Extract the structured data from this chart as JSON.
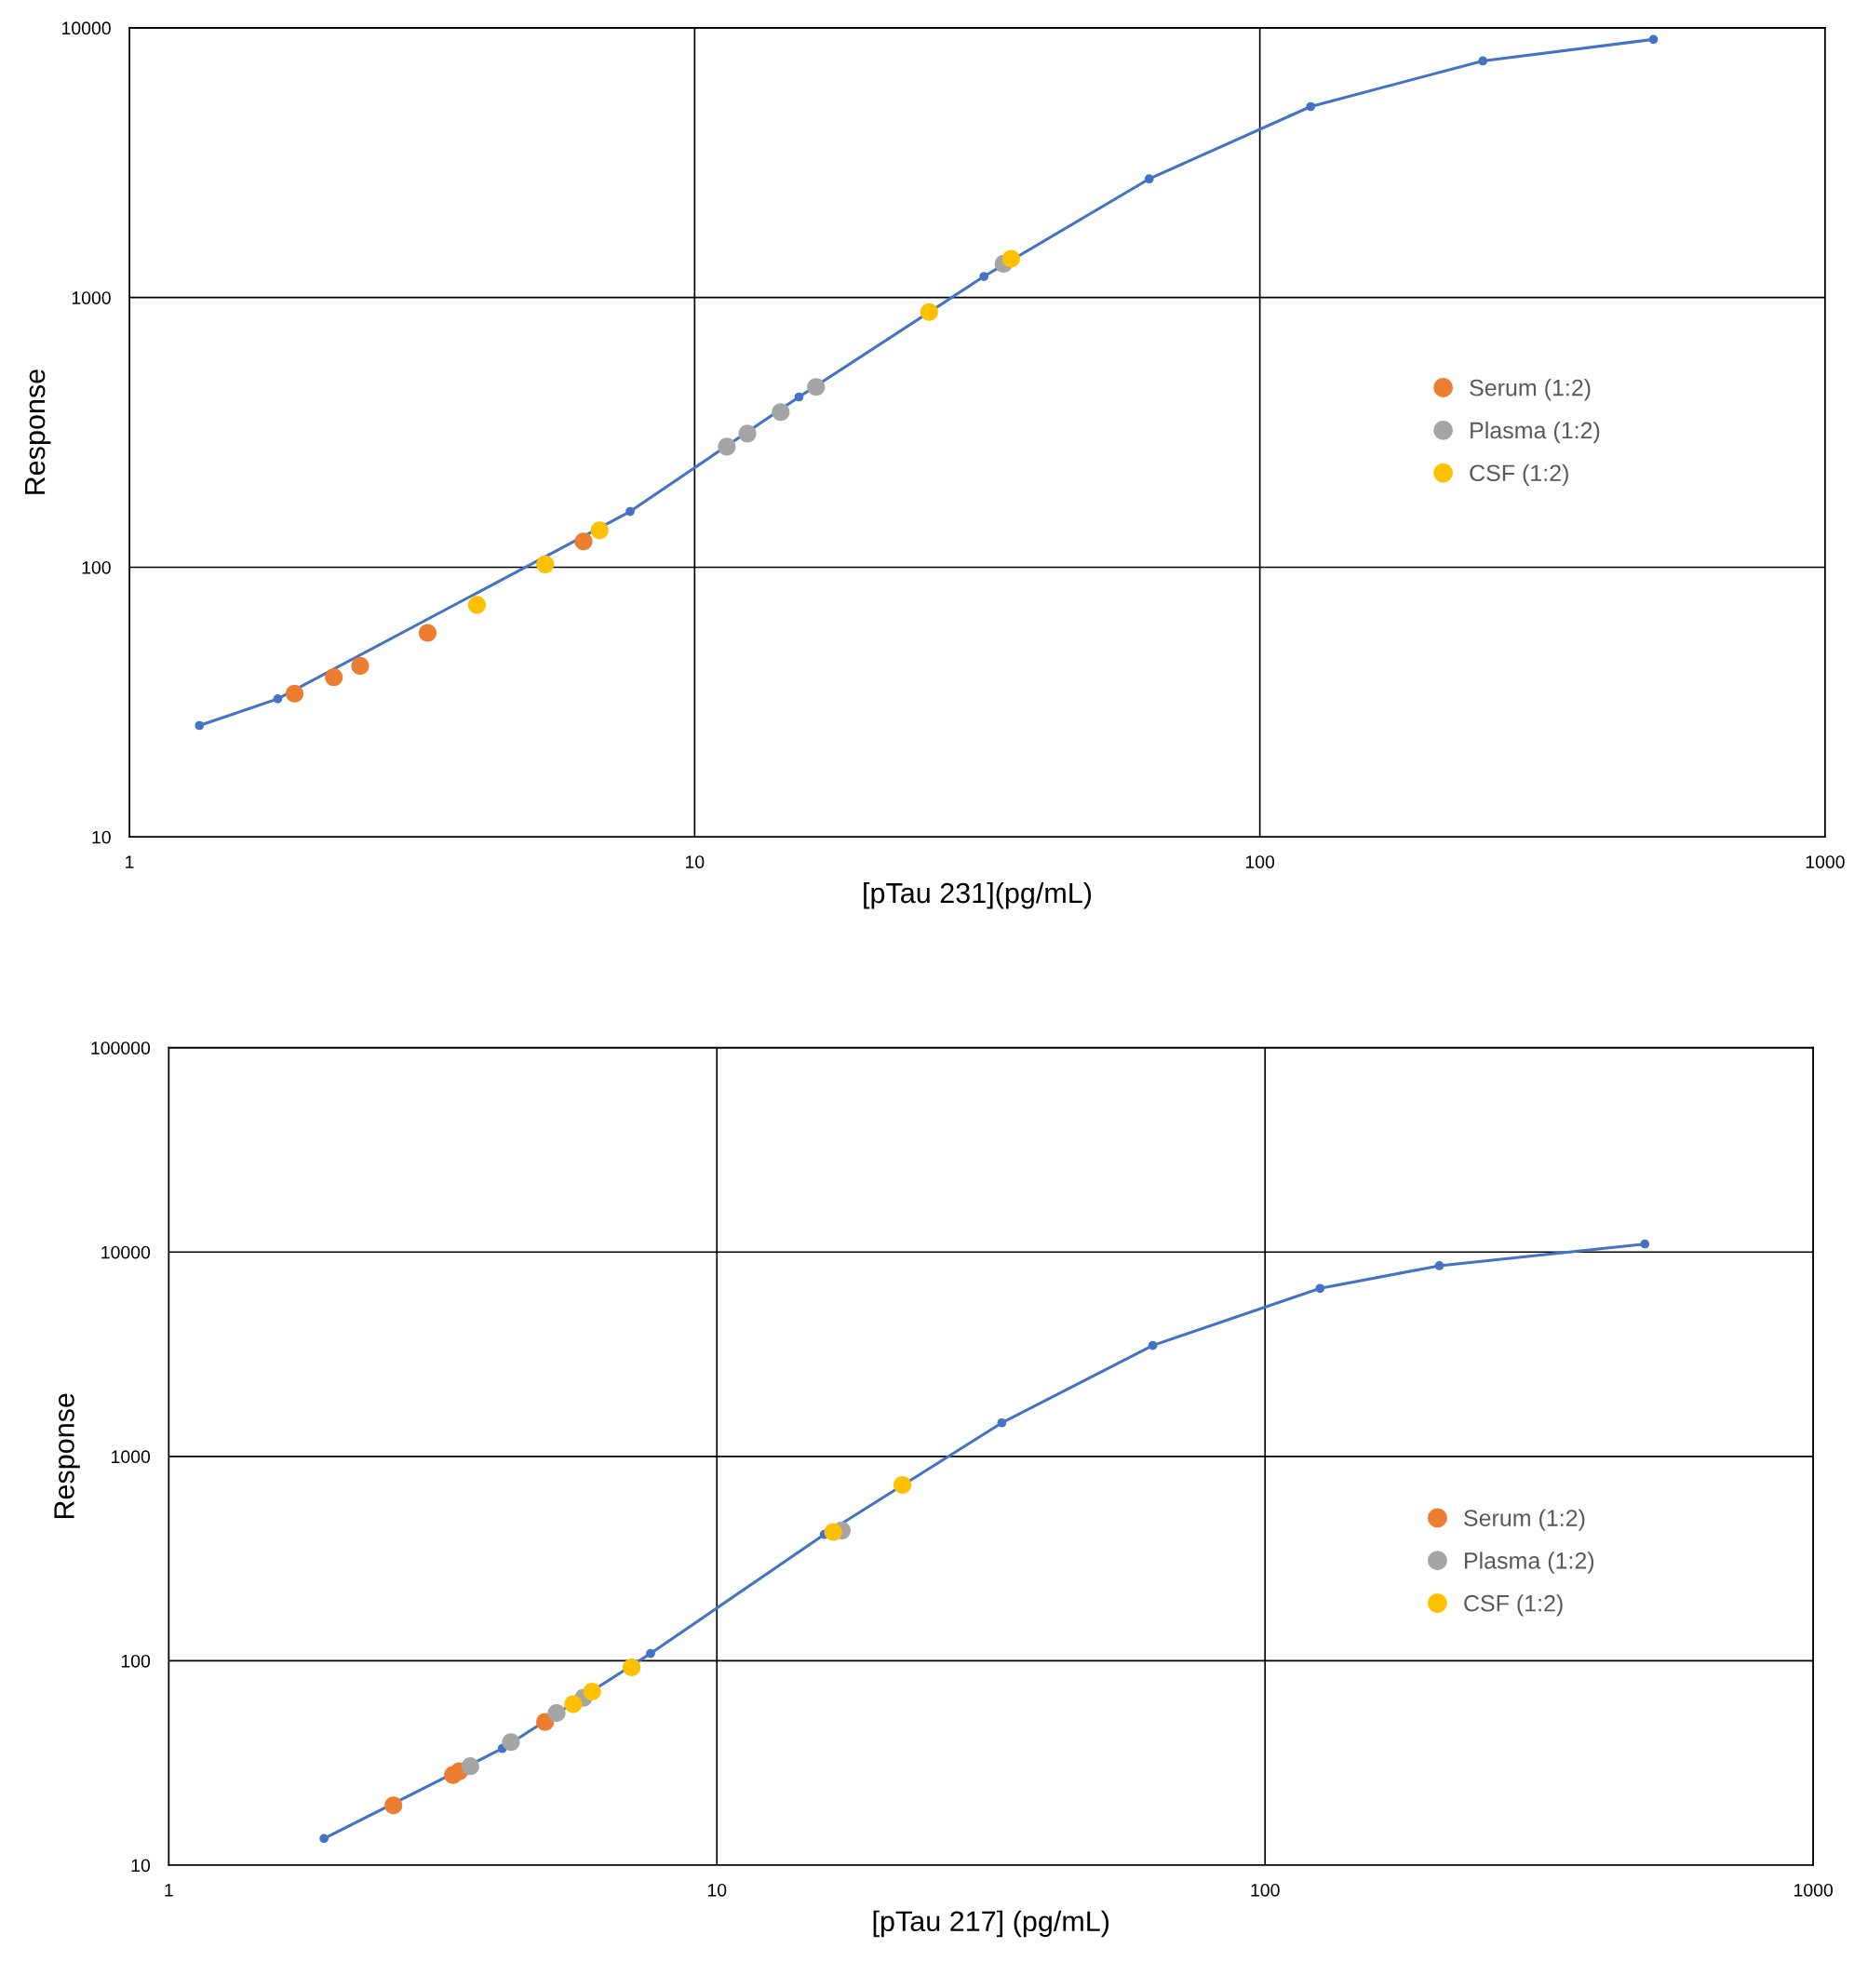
{
  "chart_data": [
    {
      "type": "scatter",
      "xlabel": "[pTau 231](pg/mL)",
      "ylabel": "Response",
      "log": "xy",
      "xlim": [
        1,
        1000
      ],
      "ylim": [
        10,
        10000
      ],
      "xticks": [
        1,
        10,
        100,
        1000
      ],
      "yticks": [
        10,
        100,
        1000,
        10000
      ],
      "grid": true,
      "legend": "right",
      "series": [
        {
          "type": "line",
          "marker": "circle",
          "color": "#4472c4",
          "x": [
            1.33,
            1.83,
            7.69,
            15.3,
            32.5,
            63.7,
            123,
            248,
            497
          ],
          "values": [
            25.9,
            32.5,
            161,
            428,
            1197,
            2754,
            5106,
            7540,
            9060
          ]
        },
        {
          "name": "Serum (1:2)",
          "marker": "circle",
          "color": "#ed7d31",
          "x": [
            1.96,
            2.3,
            2.56,
            3.37,
            6.36
          ],
          "values": [
            34.0,
            39.1,
            43.1,
            57.1,
            124.6
          ]
        },
        {
          "name": "Plasma (1:2)",
          "marker": "circle",
          "color": "#a5a5a5",
          "x": [
            11.4,
            12.4,
            14.2,
            16.4,
            35.2
          ],
          "values": [
            280,
            313,
            376,
            466,
            1334
          ]
        },
        {
          "name": "CSF (1:2)",
          "marker": "circle",
          "color": "#ffc000",
          "x": [
            4.12,
            5.44,
            6.79,
            26.0,
            36.3
          ],
          "values": [
            72.5,
            102.5,
            137,
            884,
            1393
          ]
        }
      ]
    },
    {
      "type": "scatter",
      "xlabel": "[pTau 217] (pg/mL)",
      "ylabel": "Response",
      "log": "xy",
      "xlim": [
        1,
        1000
      ],
      "ylim": [
        10,
        100000
      ],
      "xticks": [
        1,
        10,
        100,
        1000
      ],
      "yticks": [
        10,
        100,
        1000,
        10000,
        100000
      ],
      "grid": true,
      "legend": "right",
      "series": [
        {
          "type": "line",
          "marker": "circle",
          "color": "#4472c4",
          "x": [
            1.92,
            4.06,
            7.57,
            15.7,
            33.1,
            62.4,
            126,
            208,
            493
          ],
          "values": [
            13.5,
            37.2,
            108.6,
            415,
            1460,
            3490,
            6640,
            8570,
            10940
          ]
        },
        {
          "name": "Serum (1:2)",
          "marker": "circle",
          "color": "#ed7d31",
          "x": [
            2.57,
            3.3,
            3.39,
            4.86
          ],
          "values": [
            19.6,
            27.6,
            28.8,
            50.2
          ]
        },
        {
          "name": "Plasma (1:2)",
          "marker": "circle",
          "color": "#a5a5a5",
          "x": [
            3.55,
            4.21,
            5.1,
            5.71,
            16.9
          ],
          "values": [
            30.5,
            40.0,
            55.5,
            65.9,
            434
          ]
        },
        {
          "name": "CSF (1:2)",
          "marker": "circle",
          "color": "#ffc000",
          "x": [
            5.47,
            5.92,
            6.99,
            16.3,
            21.8
          ],
          "values": [
            61.3,
            70.7,
            92.8,
            427,
            725
          ]
        }
      ]
    }
  ]
}
